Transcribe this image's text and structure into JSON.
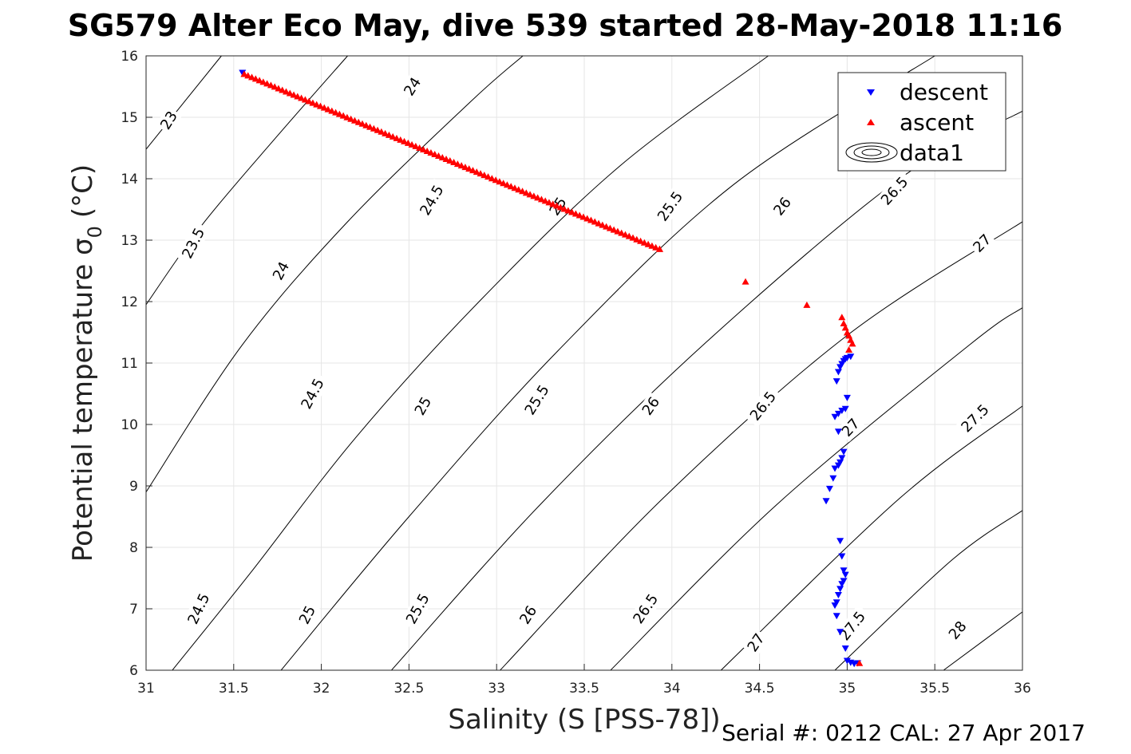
{
  "chart_data": {
    "type": "scatter",
    "title": "SG579 Alter Eco May, dive 539 started 28-May-2018 11:16",
    "xlabel": "Salinity (S [PSS-78])",
    "ylabel_main": "Potential temperature σ",
    "ylabel_sub": "0",
    "ylabel_unit": "(°C)",
    "xlim": [
      31,
      36
    ],
    "ylim": [
      6,
      16
    ],
    "xticks": [
      "31",
      "31.5",
      "32",
      "32.5",
      "33",
      "33.5",
      "34",
      "34.5",
      "35",
      "35.5",
      "36"
    ],
    "yticks": [
      "6",
      "7",
      "8",
      "9",
      "10",
      "11",
      "12",
      "13",
      "14",
      "15",
      "16"
    ],
    "grid": true,
    "legend_position": "top-right",
    "series": [
      {
        "name": "descent",
        "marker": "triangle-down",
        "color": "#0000ff",
        "points": [
          [
            31.55,
            15.72
          ],
          [
            34.88,
            8.75
          ],
          [
            34.9,
            8.95
          ],
          [
            34.92,
            9.12
          ],
          [
            34.93,
            9.28
          ],
          [
            34.95,
            9.33
          ],
          [
            34.96,
            9.38
          ],
          [
            34.97,
            9.45
          ],
          [
            34.98,
            9.55
          ],
          [
            34.95,
            9.88
          ],
          [
            34.93,
            10.12
          ],
          [
            34.95,
            10.17
          ],
          [
            34.97,
            10.22
          ],
          [
            34.99,
            10.25
          ],
          [
            35.0,
            10.43
          ],
          [
            34.94,
            10.7
          ],
          [
            34.95,
            10.85
          ],
          [
            34.96,
            10.93
          ],
          [
            34.97,
            10.98
          ],
          [
            34.98,
            11.03
          ],
          [
            34.99,
            11.06
          ],
          [
            35.0,
            11.08
          ],
          [
            35.02,
            11.1
          ],
          [
            34.96,
            8.1
          ],
          [
            34.97,
            7.85
          ],
          [
            34.98,
            7.62
          ],
          [
            34.99,
            7.55
          ],
          [
            34.98,
            7.45
          ],
          [
            34.97,
            7.4
          ],
          [
            34.96,
            7.32
          ],
          [
            34.95,
            7.22
          ],
          [
            34.94,
            7.1
          ],
          [
            34.93,
            7.05
          ],
          [
            34.94,
            6.88
          ],
          [
            34.96,
            6.62
          ],
          [
            34.99,
            6.35
          ],
          [
            35.0,
            6.15
          ],
          [
            35.02,
            6.12
          ],
          [
            35.04,
            6.1
          ],
          [
            35.06,
            6.11
          ]
        ]
      },
      {
        "name": "ascent",
        "marker": "triangle-up",
        "color": "#ff0000",
        "points": [
          [
            31.56,
            15.71
          ],
          [
            33.93,
            12.86
          ],
          [
            34.42,
            12.33
          ],
          [
            34.77,
            11.95
          ],
          [
            34.97,
            11.75
          ],
          [
            34.98,
            11.65
          ],
          [
            34.99,
            11.58
          ],
          [
            35.0,
            11.5
          ],
          [
            35.01,
            11.45
          ],
          [
            35.02,
            11.38
          ],
          [
            35.03,
            11.32
          ],
          [
            35.01,
            11.22
          ],
          [
            35.07,
            6.12
          ]
        ]
      }
    ],
    "ascent_line": {
      "from": [
        31.56,
        15.71
      ],
      "to": [
        33.93,
        12.86
      ],
      "count": 110
    },
    "contours": {
      "name": "data1",
      "levels": [
        {
          "label": "23",
          "points": [
            [
              31.0,
              14.48
            ],
            [
              31.43,
              16.0
            ]
          ]
        },
        {
          "label": "23.5",
          "points": [
            [
              31.0,
              11.95
            ],
            [
              31.32,
              13.25
            ],
            [
              31.75,
              14.7
            ],
            [
              32.15,
              16.0
            ]
          ]
        },
        {
          "label": "24",
          "points": [
            [
              31.0,
              8.9
            ],
            [
              31.55,
              11.3
            ],
            [
              32.15,
              13.3
            ],
            [
              32.85,
              15.25
            ],
            [
              33.15,
              16.0
            ]
          ]
        },
        {
          "label": "24.5",
          "points": [
            [
              31.15,
              6.0
            ],
            [
              31.6,
              7.6
            ],
            [
              32.2,
              9.8
            ],
            [
              32.9,
              12.0
            ],
            [
              33.7,
              14.2
            ],
            [
              34.55,
              16.0
            ]
          ]
        },
        {
          "label": "25",
          "points": [
            [
              31.77,
              6.0
            ],
            [
              32.5,
              8.5
            ],
            [
              33.35,
              11.2
            ],
            [
              34.35,
              13.9
            ],
            [
              35.5,
              16.0
            ]
          ]
        },
        {
          "label": "25.5",
          "points": [
            [
              32.4,
              6.0
            ],
            [
              33.25,
              8.7
            ],
            [
              34.2,
              11.35
            ],
            [
              35.3,
              14.0
            ],
            [
              36.0,
              15.1
            ]
          ]
        },
        {
          "label": "26",
          "points": [
            [
              33.02,
              6.0
            ],
            [
              33.95,
              8.8
            ],
            [
              35.0,
              11.45
            ],
            [
              36.0,
              13.3
            ]
          ]
        },
        {
          "label": "26.5",
          "points": [
            [
              33.65,
              6.0
            ],
            [
              34.6,
              8.7
            ],
            [
              35.7,
              11.3
            ],
            [
              36.0,
              11.9
            ]
          ]
        },
        {
          "label": "27",
          "points": [
            [
              34.28,
              6.0
            ],
            [
              35.3,
              8.8
            ],
            [
              36.0,
              10.3
            ]
          ]
        },
        {
          "label": "27.5",
          "points": [
            [
              34.93,
              6.0
            ],
            [
              35.6,
              7.8
            ],
            [
              36.0,
              8.6
            ]
          ]
        },
        {
          "label": "28",
          "points": [
            [
              35.55,
              6.0
            ],
            [
              36.0,
              6.95
            ]
          ]
        }
      ],
      "labels": [
        {
          "text": "23",
          "at": [
            31.13,
            14.95
          ],
          "angle": -58
        },
        {
          "text": "24",
          "at": [
            32.52,
            15.5
          ],
          "angle": -58
        },
        {
          "text": "23.5",
          "at": [
            31.27,
            12.95
          ],
          "angle": -63
        },
        {
          "text": "24.5",
          "at": [
            32.63,
            13.65
          ],
          "angle": -60
        },
        {
          "text": "25",
          "at": [
            33.35,
            13.55
          ],
          "angle": -57
        },
        {
          "text": "25.5",
          "at": [
            33.99,
            13.55
          ],
          "angle": -55
        },
        {
          "text": "26",
          "at": [
            34.63,
            13.55
          ],
          "angle": -52
        },
        {
          "text": "26.5",
          "at": [
            35.27,
            13.8
          ],
          "angle": -48
        },
        {
          "text": "27",
          "at": [
            35.77,
            12.95
          ],
          "angle": -45
        },
        {
          "text": "24",
          "at": [
            31.77,
            12.5
          ],
          "angle": -62
        },
        {
          "text": "24.5",
          "at": [
            31.95,
            10.5
          ],
          "angle": -62
        },
        {
          "text": "25",
          "at": [
            32.58,
            10.3
          ],
          "angle": -60
        },
        {
          "text": "25.5",
          "at": [
            33.23,
            10.4
          ],
          "angle": -58
        },
        {
          "text": "26",
          "at": [
            33.88,
            10.3
          ],
          "angle": -55
        },
        {
          "text": "26.5",
          "at": [
            34.52,
            10.3
          ],
          "angle": -52
        },
        {
          "text": "27",
          "at": [
            35.02,
            9.95
          ],
          "angle": -48
        },
        {
          "text": "27.5",
          "at": [
            35.73,
            10.1
          ],
          "angle": -45
        },
        {
          "text": "24.5",
          "at": [
            31.3,
            7.0
          ],
          "angle": -65
        },
        {
          "text": "25",
          "at": [
            31.92,
            6.9
          ],
          "angle": -63
        },
        {
          "text": "25.5",
          "at": [
            32.55,
            7.0
          ],
          "angle": -61
        },
        {
          "text": "26",
          "at": [
            33.18,
            6.9
          ],
          "angle": -58
        },
        {
          "text": "26.5",
          "at": [
            33.85,
            7.0
          ],
          "angle": -56
        },
        {
          "text": "27",
          "at": [
            34.48,
            6.45
          ],
          "angle": -56
        },
        {
          "text": "27.5",
          "at": [
            35.03,
            6.72
          ],
          "angle": -52
        },
        {
          "text": "28",
          "at": [
            35.63,
            6.65
          ],
          "angle": -50
        }
      ]
    }
  },
  "footer": "Serial #: 0212  CAL: 27 Apr 2017"
}
